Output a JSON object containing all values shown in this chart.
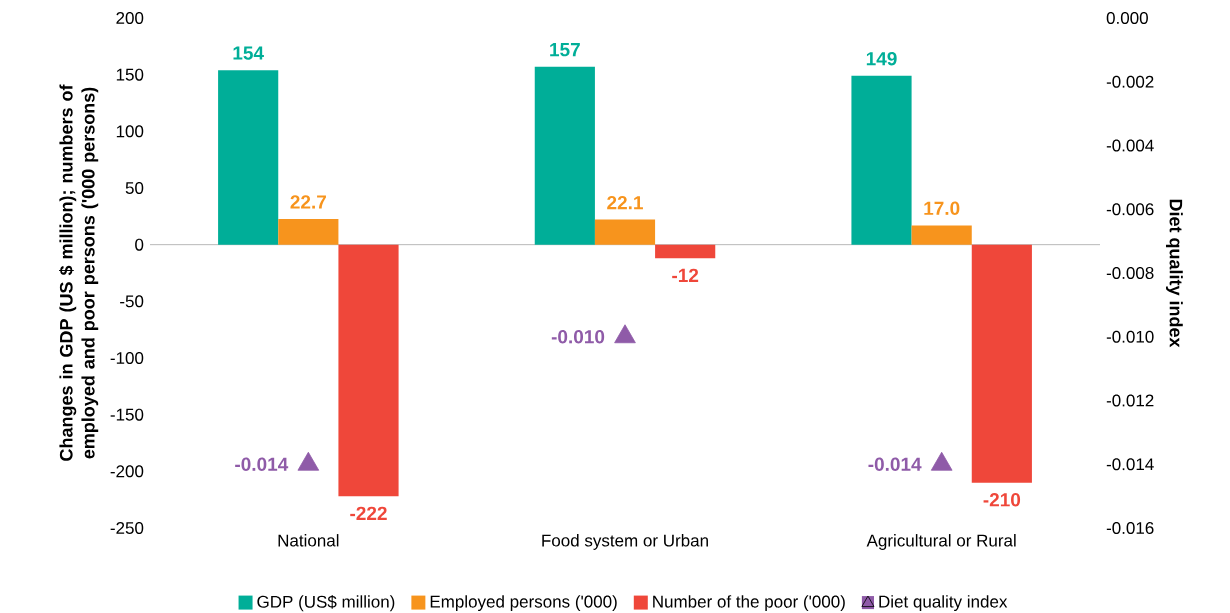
{
  "chart_data": {
    "type": "bar",
    "categories": [
      "National",
      "Food system or Urban",
      "Agricultural or Rural"
    ],
    "series": [
      {
        "name": "GDP (US$ million)",
        "type": "bar",
        "color": "#00ae98",
        "values": [
          154,
          157,
          149
        ],
        "value_labels": [
          "154",
          "157",
          "149"
        ]
      },
      {
        "name": "Employed persons ('000)",
        "type": "bar",
        "color": "#f7941d",
        "values": [
          22.7,
          22.1,
          17.0
        ],
        "value_labels": [
          "22.7",
          "22.1",
          "17.0"
        ]
      },
      {
        "name": "Number of the poor ('000)",
        "type": "bar",
        "color": "#ef473a",
        "values": [
          -222,
          -12,
          -210
        ],
        "value_labels": [
          "-222",
          "-12",
          "-210"
        ]
      },
      {
        "name": "Diet quality index",
        "type": "scatter",
        "axis": "y2",
        "marker": "triangle",
        "color": "#8f5ba8",
        "values": [
          -0.014,
          -0.01,
          -0.014
        ],
        "value_labels": [
          "-0.014",
          "-0.010",
          "-0.014"
        ]
      }
    ],
    "ylabel": "Changes in GDP (US $ million); numbers of employed and poor persons ('000 persons)",
    "y2label": "Diet quality index",
    "ylim": [
      -250,
      200
    ],
    "yticks": [
      -250,
      -200,
      -150,
      -100,
      -50,
      0,
      50,
      100,
      150,
      200
    ],
    "y2lim": [
      -0.016,
      0
    ],
    "y2ticks": [
      {
        "value": -0.016,
        "label": "-0.016"
      },
      {
        "value": -0.014,
        "label": "-0.014"
      },
      {
        "value": -0.012,
        "label": "-0.012"
      },
      {
        "value": -0.01,
        "label": "-0.010"
      },
      {
        "value": -0.008,
        "label": "-0.008"
      },
      {
        "value": -0.006,
        "label": "-0.006"
      },
      {
        "value": -0.004,
        "label": "-0.004"
      },
      {
        "value": -0.002,
        "label": "-0.002"
      },
      {
        "value": 0,
        "label": "0.000"
      }
    ],
    "legend": "bottom"
  }
}
